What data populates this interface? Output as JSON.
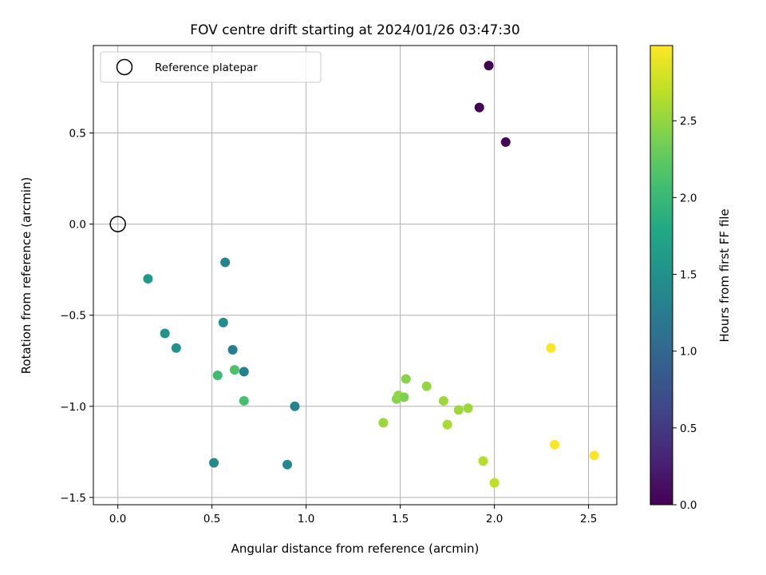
{
  "chart_data": {
    "type": "scatter",
    "title": "FOV centre drift starting at 2024/01/26 03:47:30",
    "xlabel": "Angular distance from reference (arcmin)",
    "ylabel": "Rotation from reference (arcmin)",
    "xlim": [
      -0.13,
      2.65
    ],
    "ylim": [
      -1.54,
      0.98
    ],
    "xticks": [
      0.0,
      0.5,
      1.0,
      1.5,
      2.0,
      2.5
    ],
    "xtick_labels": [
      "0.0",
      "0.5",
      "1.0",
      "1.5",
      "2.0",
      "2.5"
    ],
    "yticks": [
      -1.5,
      -1.0,
      -0.5,
      0.0,
      0.5
    ],
    "ytick_labels": [
      "−1.5",
      "−1.0",
      "−0.5",
      "0.0",
      "0.5"
    ],
    "grid": true,
    "legend": {
      "placement": "top-left",
      "entries": [
        {
          "label": "Reference platepar",
          "marker": "open-circle"
        }
      ]
    },
    "reference_point": {
      "x": 0.0,
      "y": 0.0
    },
    "colorbar": {
      "label": "Hours from first FF file",
      "colormap": "viridis",
      "range": [
        0.0,
        2.99
      ],
      "ticks": [
        0.0,
        0.5,
        1.0,
        1.5,
        2.0,
        2.5
      ],
      "tick_labels": [
        "0.0",
        "0.5",
        "1.0",
        "1.5",
        "2.0",
        "2.5"
      ]
    },
    "points": [
      {
        "x": 1.97,
        "y": 0.87,
        "hours": 0.0
      },
      {
        "x": 1.92,
        "y": 0.64,
        "hours": 0.02
      },
      {
        "x": 2.06,
        "y": 0.45,
        "hours": 0.04
      },
      {
        "x": 0.57,
        "y": -0.21,
        "hours": 1.35
      },
      {
        "x": 0.16,
        "y": -0.3,
        "hours": 1.6
      },
      {
        "x": 0.56,
        "y": -0.54,
        "hours": 1.45
      },
      {
        "x": 0.25,
        "y": -0.6,
        "hours": 1.55
      },
      {
        "x": 0.31,
        "y": -0.68,
        "hours": 1.5
      },
      {
        "x": 0.61,
        "y": -0.69,
        "hours": 1.25
      },
      {
        "x": 0.67,
        "y": -0.81,
        "hours": 1.3
      },
      {
        "x": 0.53,
        "y": -0.83,
        "hours": 2.05
      },
      {
        "x": 0.62,
        "y": -0.8,
        "hours": 2.15
      },
      {
        "x": 0.67,
        "y": -0.97,
        "hours": 2.1
      },
      {
        "x": 0.94,
        "y": -1.0,
        "hours": 1.35
      },
      {
        "x": 0.51,
        "y": -1.31,
        "hours": 1.4
      },
      {
        "x": 0.9,
        "y": -1.32,
        "hours": 1.4
      },
      {
        "x": 1.41,
        "y": -1.09,
        "hours": 2.55
      },
      {
        "x": 1.48,
        "y": -0.96,
        "hours": 2.45
      },
      {
        "x": 1.49,
        "y": -0.94,
        "hours": 2.5
      },
      {
        "x": 1.52,
        "y": -0.95,
        "hours": 2.4
      },
      {
        "x": 1.53,
        "y": -0.85,
        "hours": 2.45
      },
      {
        "x": 1.64,
        "y": -0.89,
        "hours": 2.5
      },
      {
        "x": 1.73,
        "y": -0.97,
        "hours": 2.55
      },
      {
        "x": 1.75,
        "y": -1.1,
        "hours": 2.6
      },
      {
        "x": 1.81,
        "y": -1.02,
        "hours": 2.55
      },
      {
        "x": 1.86,
        "y": -1.01,
        "hours": 2.55
      },
      {
        "x": 1.94,
        "y": -1.3,
        "hours": 2.65
      },
      {
        "x": 2.0,
        "y": -1.42,
        "hours": 2.7
      },
      {
        "x": 2.3,
        "y": -0.68,
        "hours": 2.97
      },
      {
        "x": 2.32,
        "y": -1.21,
        "hours": 2.98
      },
      {
        "x": 2.53,
        "y": -1.27,
        "hours": 2.99
      }
    ]
  }
}
